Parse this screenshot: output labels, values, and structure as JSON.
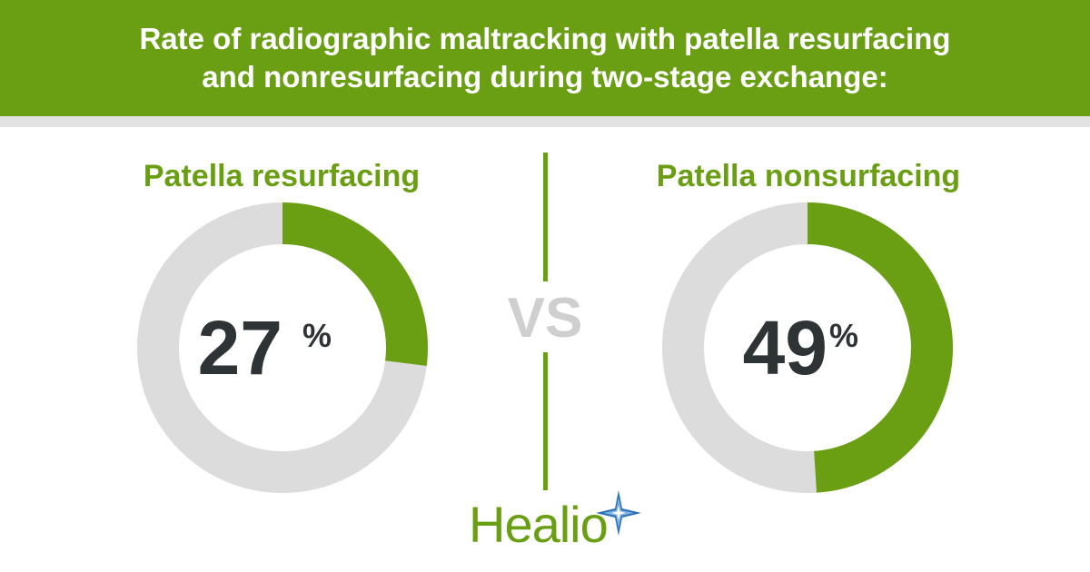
{
  "header": {
    "title": "Rate of radiographic maltracking with patella resurfacing and nonresurfacing during two-stage exchange:"
  },
  "divider": {
    "vs_text": "VS"
  },
  "logo": {
    "text": "Healio",
    "icon": "star-icon"
  },
  "colors": {
    "accent": "#6a9f14",
    "ring_bg": "#dcdcdc",
    "value_text": "#2e3336",
    "vs_text": "#cfcfcf"
  },
  "chart_data": [
    {
      "type": "pie",
      "title": "Patella resurfacing",
      "value": 27,
      "value_text": "27",
      "unit": "%",
      "max": 100
    },
    {
      "type": "pie",
      "title": "Patella nonsurfacing",
      "value": 49,
      "value_text": "49",
      "unit": "%",
      "max": 100
    }
  ]
}
